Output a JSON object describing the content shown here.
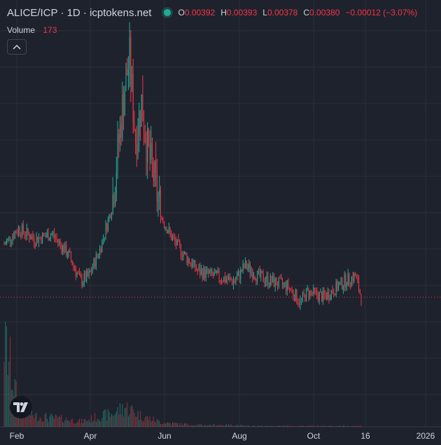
{
  "legend": {
    "title": "ALICE/ICP · 1D · icptokens.net",
    "open_key": "O",
    "open": "0.00392",
    "high_key": "H",
    "high": "0.00393",
    "low_key": "L",
    "low": "0.00378",
    "close_key": "C",
    "close": "0.00380",
    "change": "−0.00012 (−3.07%)"
  },
  "volume": {
    "label": "Volume",
    "value": "173"
  },
  "colors": {
    "up": "#22ab94",
    "down": "#f23645",
    "background": "#1e222d",
    "grid": "#2a2e39",
    "price_line": "#f23645"
  },
  "xaxis": {
    "ticks": [
      "Feb",
      "Apr",
      "Jun",
      "Aug",
      "Oct",
      "16",
      "2026"
    ]
  },
  "icons": {
    "collapse": "chevron-up-icon",
    "logo": "tradingview-logo-icon",
    "status": "market-status-dot"
  },
  "chart_data": {
    "type": "candlestick",
    "series": "ALICE/ICP",
    "interval": "1D",
    "last_close": 0.0038,
    "dates": [
      "2025-01-20",
      "2025-02-01",
      "2025-02-15",
      "2025-03-01",
      "2025-03-15",
      "2025-03-25",
      "2025-04-01",
      "2025-04-10",
      "2025-04-20",
      "2025-05-01",
      "2025-05-05",
      "2025-05-10",
      "2025-05-15",
      "2025-05-20",
      "2025-05-25",
      "2025-06-01",
      "2025-06-10",
      "2025-06-20",
      "2025-07-01",
      "2025-07-15",
      "2025-08-01",
      "2025-08-10",
      "2025-08-20",
      "2025-09-01",
      "2025-09-15",
      "2025-09-25",
      "2025-10-01",
      "2025-10-15",
      "2025-11-01",
      "2025-11-10",
      "2025-11-15"
    ],
    "close": [
      0.0048,
      0.0051,
      0.0049,
      0.005,
      0.0046,
      0.0041,
      0.0042,
      0.0047,
      0.0055,
      0.0078,
      0.0083,
      0.0068,
      0.0075,
      0.0066,
      0.0061,
      0.0053,
      0.0049,
      0.0046,
      0.0043,
      0.0042,
      0.0041,
      0.0044,
      0.0042,
      0.0041,
      0.004,
      0.0037,
      0.0039,
      0.0038,
      0.0041,
      0.0042,
      0.0038
    ],
    "volume_relative": [
      1.0,
      0.22,
      0.12,
      0.1,
      0.08,
      0.06,
      0.08,
      0.12,
      0.14,
      0.22,
      0.2,
      0.16,
      0.12,
      0.1,
      0.08,
      0.05,
      0.04,
      0.03,
      0.02,
      0.02,
      0.02,
      0.01,
      0.01,
      0.01,
      0.01,
      0.01,
      0.01,
      0.01,
      0.01,
      0.01,
      0.01
    ]
  }
}
